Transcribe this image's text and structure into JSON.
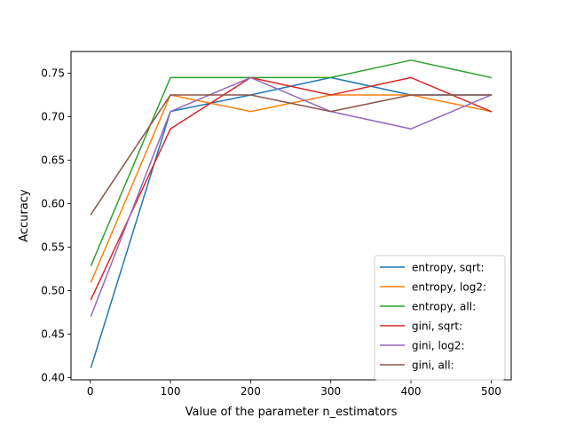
{
  "chart_data": {
    "type": "line",
    "title": "",
    "xlabel": "Value of the parameter n_estimators",
    "ylabel": "Accuracy",
    "x": [
      1,
      100,
      200,
      300,
      400,
      500
    ],
    "xlim": [
      -24,
      525
    ],
    "ylim": [
      0.3975,
      0.775
    ],
    "xticks": [
      0,
      100,
      200,
      300,
      400,
      500
    ],
    "yticks": [
      0.4,
      0.45,
      0.5,
      0.55,
      0.6,
      0.65,
      0.7,
      0.75
    ],
    "grid": false,
    "legend_position": "lower-right",
    "series": [
      {
        "name": "entropy, sqrt:",
        "color": "#1f77b4",
        "values": [
          0.412,
          0.706,
          0.725,
          0.745,
          0.725,
          0.725
        ]
      },
      {
        "name": "entropy, log2:",
        "color": "#ff7f0e",
        "values": [
          0.51,
          0.725,
          0.706,
          0.725,
          0.725,
          0.706
        ]
      },
      {
        "name": "entropy, all:",
        "color": "#2ca02c",
        "values": [
          0.529,
          0.745,
          0.745,
          0.745,
          0.765,
          0.745
        ]
      },
      {
        "name": "gini, sqrt:",
        "color": "#d62728",
        "values": [
          0.49,
          0.686,
          0.745,
          0.725,
          0.745,
          0.706
        ]
      },
      {
        "name": "gini, log2:",
        "color": "#9467bd",
        "values": [
          0.471,
          0.706,
          0.745,
          0.706,
          0.686,
          0.725
        ]
      },
      {
        "name": "gini, all:",
        "color": "#8c564b",
        "values": [
          0.588,
          0.725,
          0.725,
          0.706,
          0.725,
          0.725
        ]
      }
    ]
  }
}
